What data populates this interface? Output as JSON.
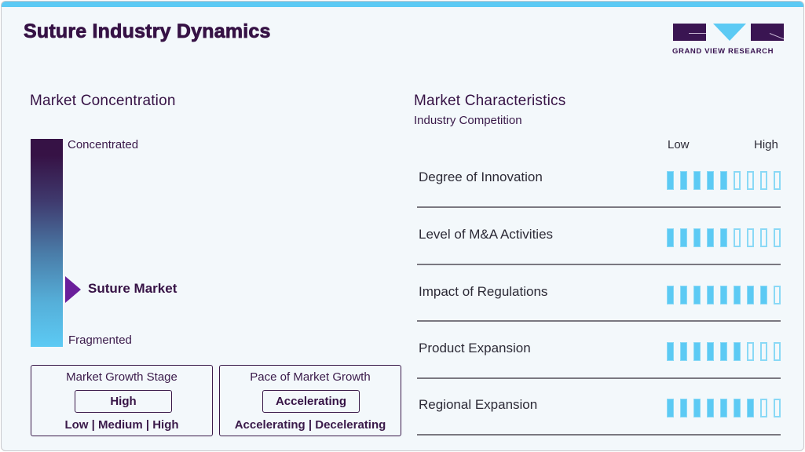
{
  "header": {
    "title": "Suture Industry Dynamics",
    "logo_text": "GRAND VIEW RESEARCH"
  },
  "colors": {
    "accent": "#5ccaf4",
    "brand_dark": "#361245",
    "marker": "#6a1f9b"
  },
  "market_concentration": {
    "title": "Market Concentration",
    "top_label": "Concentrated",
    "bottom_label": "Fragmented",
    "marker_label": "Suture Market",
    "marker_position_pct_from_top": 72
  },
  "market_growth_stage": {
    "label": "Market Growth Stage",
    "value": "High",
    "options": "Low | Medium | High"
  },
  "pace_of_market_growth": {
    "label": "Pace of Market Growth",
    "value": "Accelerating",
    "options": "Accelerating | Decelerating"
  },
  "market_characteristics": {
    "title": "Market Characteristics",
    "subtitle": "Industry Competition",
    "scale_low": "Low",
    "scale_high": "High",
    "max_rating": 9,
    "rows": [
      {
        "label": "Degree of Innovation",
        "rating": 5
      },
      {
        "label": "Level of M&A Activities",
        "rating": 5
      },
      {
        "label": "Impact of Regulations",
        "rating": 8
      },
      {
        "label": "Product Expansion",
        "rating": 6
      },
      {
        "label": "Regional Expansion",
        "rating": 7
      }
    ]
  }
}
